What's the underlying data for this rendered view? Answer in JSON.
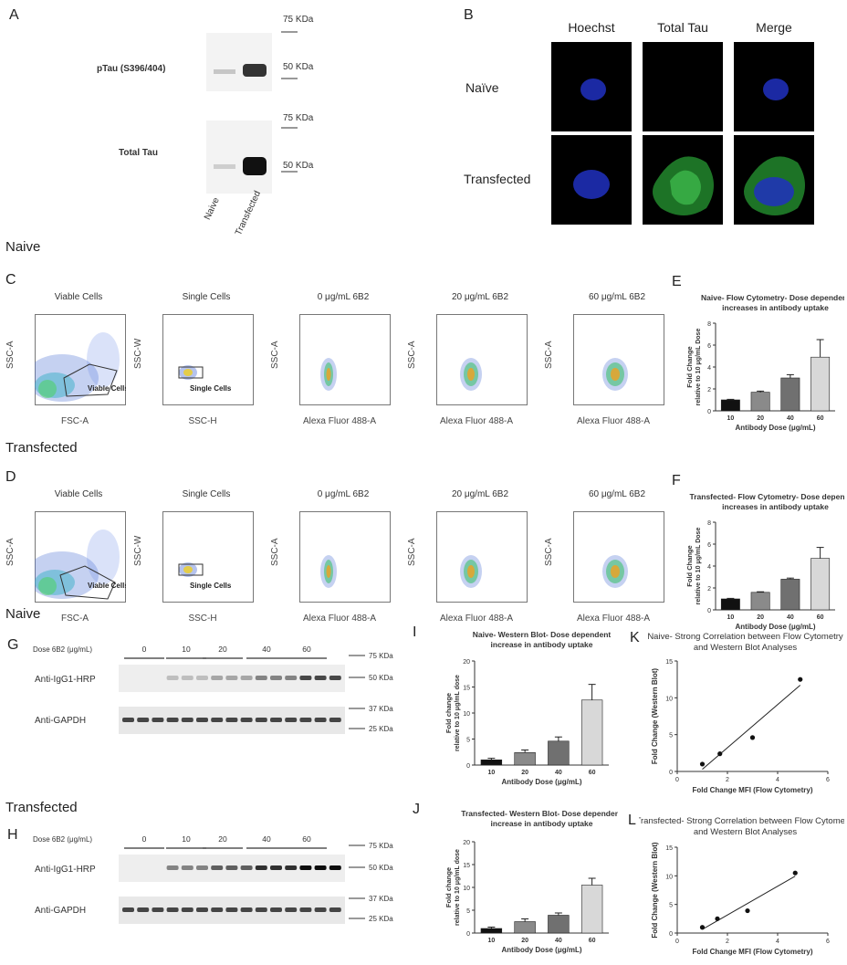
{
  "panel_letters": {
    "A": "A",
    "B": "B",
    "C": "C",
    "D": "D",
    "E": "E",
    "F": "F",
    "G": "G",
    "H": "H",
    "I": "I",
    "J": "J",
    "K": "K",
    "L": "L"
  },
  "section_labels": {
    "naive1": "Naive",
    "transfected1": "Transfected",
    "naive2": "Naive",
    "transfected2": "Transfected"
  },
  "panelA": {
    "row1": "pTau (S396/404)",
    "row2": "Total Tau",
    "markers": [
      "75 KDa",
      "50 KDa",
      "75 KDa",
      "50 KDa"
    ],
    "lanes": [
      "Naive",
      "Transfected"
    ]
  },
  "panelB": {
    "cols": [
      "Hoechst",
      "Total Tau",
      "Merge"
    ],
    "rows": [
      "Naïve",
      "Transfected"
    ]
  },
  "flow": {
    "titles": [
      "Viable Cells",
      "Single Cells",
      "0 μg/mL 6B2",
      "20 μg/mL 6B2",
      "60 μg/mL 6B2"
    ],
    "ylabels": [
      "SSC-A",
      "SSC-W",
      "SSC-A",
      "SSC-A",
      "SSC-A"
    ],
    "xlabels": [
      "FSC-A",
      "SSC-H",
      "Alexa Fluor 488-A",
      "Alexa Fluor 488-A",
      "Alexa Fluor 488-A"
    ],
    "gates": [
      "Viable Cells",
      "Single Cells"
    ]
  },
  "westernG": {
    "dose_label": "Dose 6B2 (μg/mL)",
    "doses": [
      "0",
      "10",
      "20",
      "40",
      "60"
    ],
    "rows": [
      "Anti-IgG1-HRP",
      "Anti-GAPDH"
    ],
    "markers": [
      "75 KDa",
      "50 KDa",
      "37 KDa",
      "25 KDa"
    ]
  },
  "chart_data": [
    {
      "panel": "E",
      "type": "bar",
      "title": "Naive- Flow Cytometry- Dose dependent increases in antibody uptake",
      "ylabel": "Fold Change relative to 10 μg/mL Dose",
      "xlabel": "Antibody Dose (μg/mL)",
      "categories": [
        "10",
        "20",
        "40",
        "60"
      ],
      "values": [
        1.0,
        1.7,
        3.0,
        4.9
      ],
      "errors": [
        0.05,
        0.1,
        0.3,
        1.6
      ],
      "ylim": [
        0,
        8
      ],
      "yticks": [
        "0",
        "2",
        "4",
        "6",
        "8"
      ]
    },
    {
      "panel": "F",
      "type": "bar",
      "title": "Transfected- Flow Cytometry- Dose dependent increases in antibody uptake",
      "ylabel": "Fold Change relative to 10 μg/mL Dose",
      "xlabel": "Antibody Dose (μg/mL)",
      "categories": [
        "10",
        "20",
        "40",
        "60"
      ],
      "values": [
        1.0,
        1.6,
        2.8,
        4.7
      ],
      "errors": [
        0.05,
        0.05,
        0.1,
        1.0
      ],
      "ylim": [
        0,
        8
      ],
      "yticks": [
        "0",
        "2",
        "4",
        "6",
        "8"
      ]
    },
    {
      "panel": "I",
      "type": "bar",
      "title": "Naive- Western Blot- Dose dependent increase in antibody uptake",
      "ylabel": "Fold change relative to 10 μg/mL dose",
      "xlabel": "Antibody Dose (μg/mL)",
      "categories": [
        "10",
        "20",
        "40",
        "60"
      ],
      "values": [
        1.0,
        2.4,
        4.6,
        12.5
      ],
      "errors": [
        0.3,
        0.5,
        0.8,
        3.0
      ],
      "ylim": [
        0,
        20
      ],
      "yticks": [
        "0",
        "5",
        "10",
        "15",
        "20"
      ]
    },
    {
      "panel": "J",
      "type": "bar",
      "title": "Transfected- Western Blot- Dose dependent increase in antibody uptake",
      "ylabel": "Fold change relative to 10 μg/mL dose",
      "xlabel": "Antibody Dose (μg/mL)",
      "categories": [
        "10",
        "20",
        "40",
        "60"
      ],
      "values": [
        1.0,
        2.5,
        3.9,
        10.5
      ],
      "errors": [
        0.3,
        0.6,
        0.5,
        1.5
      ],
      "ylim": [
        0,
        20
      ],
      "yticks": [
        "0",
        "5",
        "10",
        "15",
        "20"
      ]
    },
    {
      "panel": "K",
      "type": "scatter",
      "title": "Naive- Strong Correlation between Flow Cytometry and Western Blot Analyses",
      "xlabel": "Fold Change MFI (Flow Cytometry)",
      "ylabel": "Fold Change (Western Blot)",
      "x": [
        1.0,
        1.7,
        3.0,
        4.9
      ],
      "y": [
        1.0,
        2.4,
        4.6,
        12.5
      ],
      "xlim": [
        0,
        6
      ],
      "ylim": [
        0,
        15
      ],
      "xticks": [
        "0",
        "2",
        "4",
        "6"
      ],
      "yticks": [
        "0",
        "5",
        "10",
        "15"
      ],
      "fit": true
    },
    {
      "panel": "L",
      "type": "scatter",
      "title": "Transfected- Strong Correlation between Flow Cytometry and Western Blot Analyses",
      "xlabel": "Fold Change MFI (Flow Cytometry)",
      "ylabel": "Fold Change (Western Blot)",
      "x": [
        1.0,
        1.6,
        2.8,
        4.7
      ],
      "y": [
        1.0,
        2.5,
        3.9,
        10.5
      ],
      "xlim": [
        0,
        6
      ],
      "ylim": [
        0,
        15
      ],
      "xticks": [
        "0",
        "2",
        "4",
        "6"
      ],
      "yticks": [
        "0",
        "5",
        "10",
        "15"
      ],
      "fit": true
    }
  ],
  "colors": {
    "bar_fills": [
      "#111111",
      "#8a8a8a",
      "#707070",
      "#d8d8d8"
    ],
    "hoechst": "#2030c0",
    "tau": "#30c040"
  }
}
